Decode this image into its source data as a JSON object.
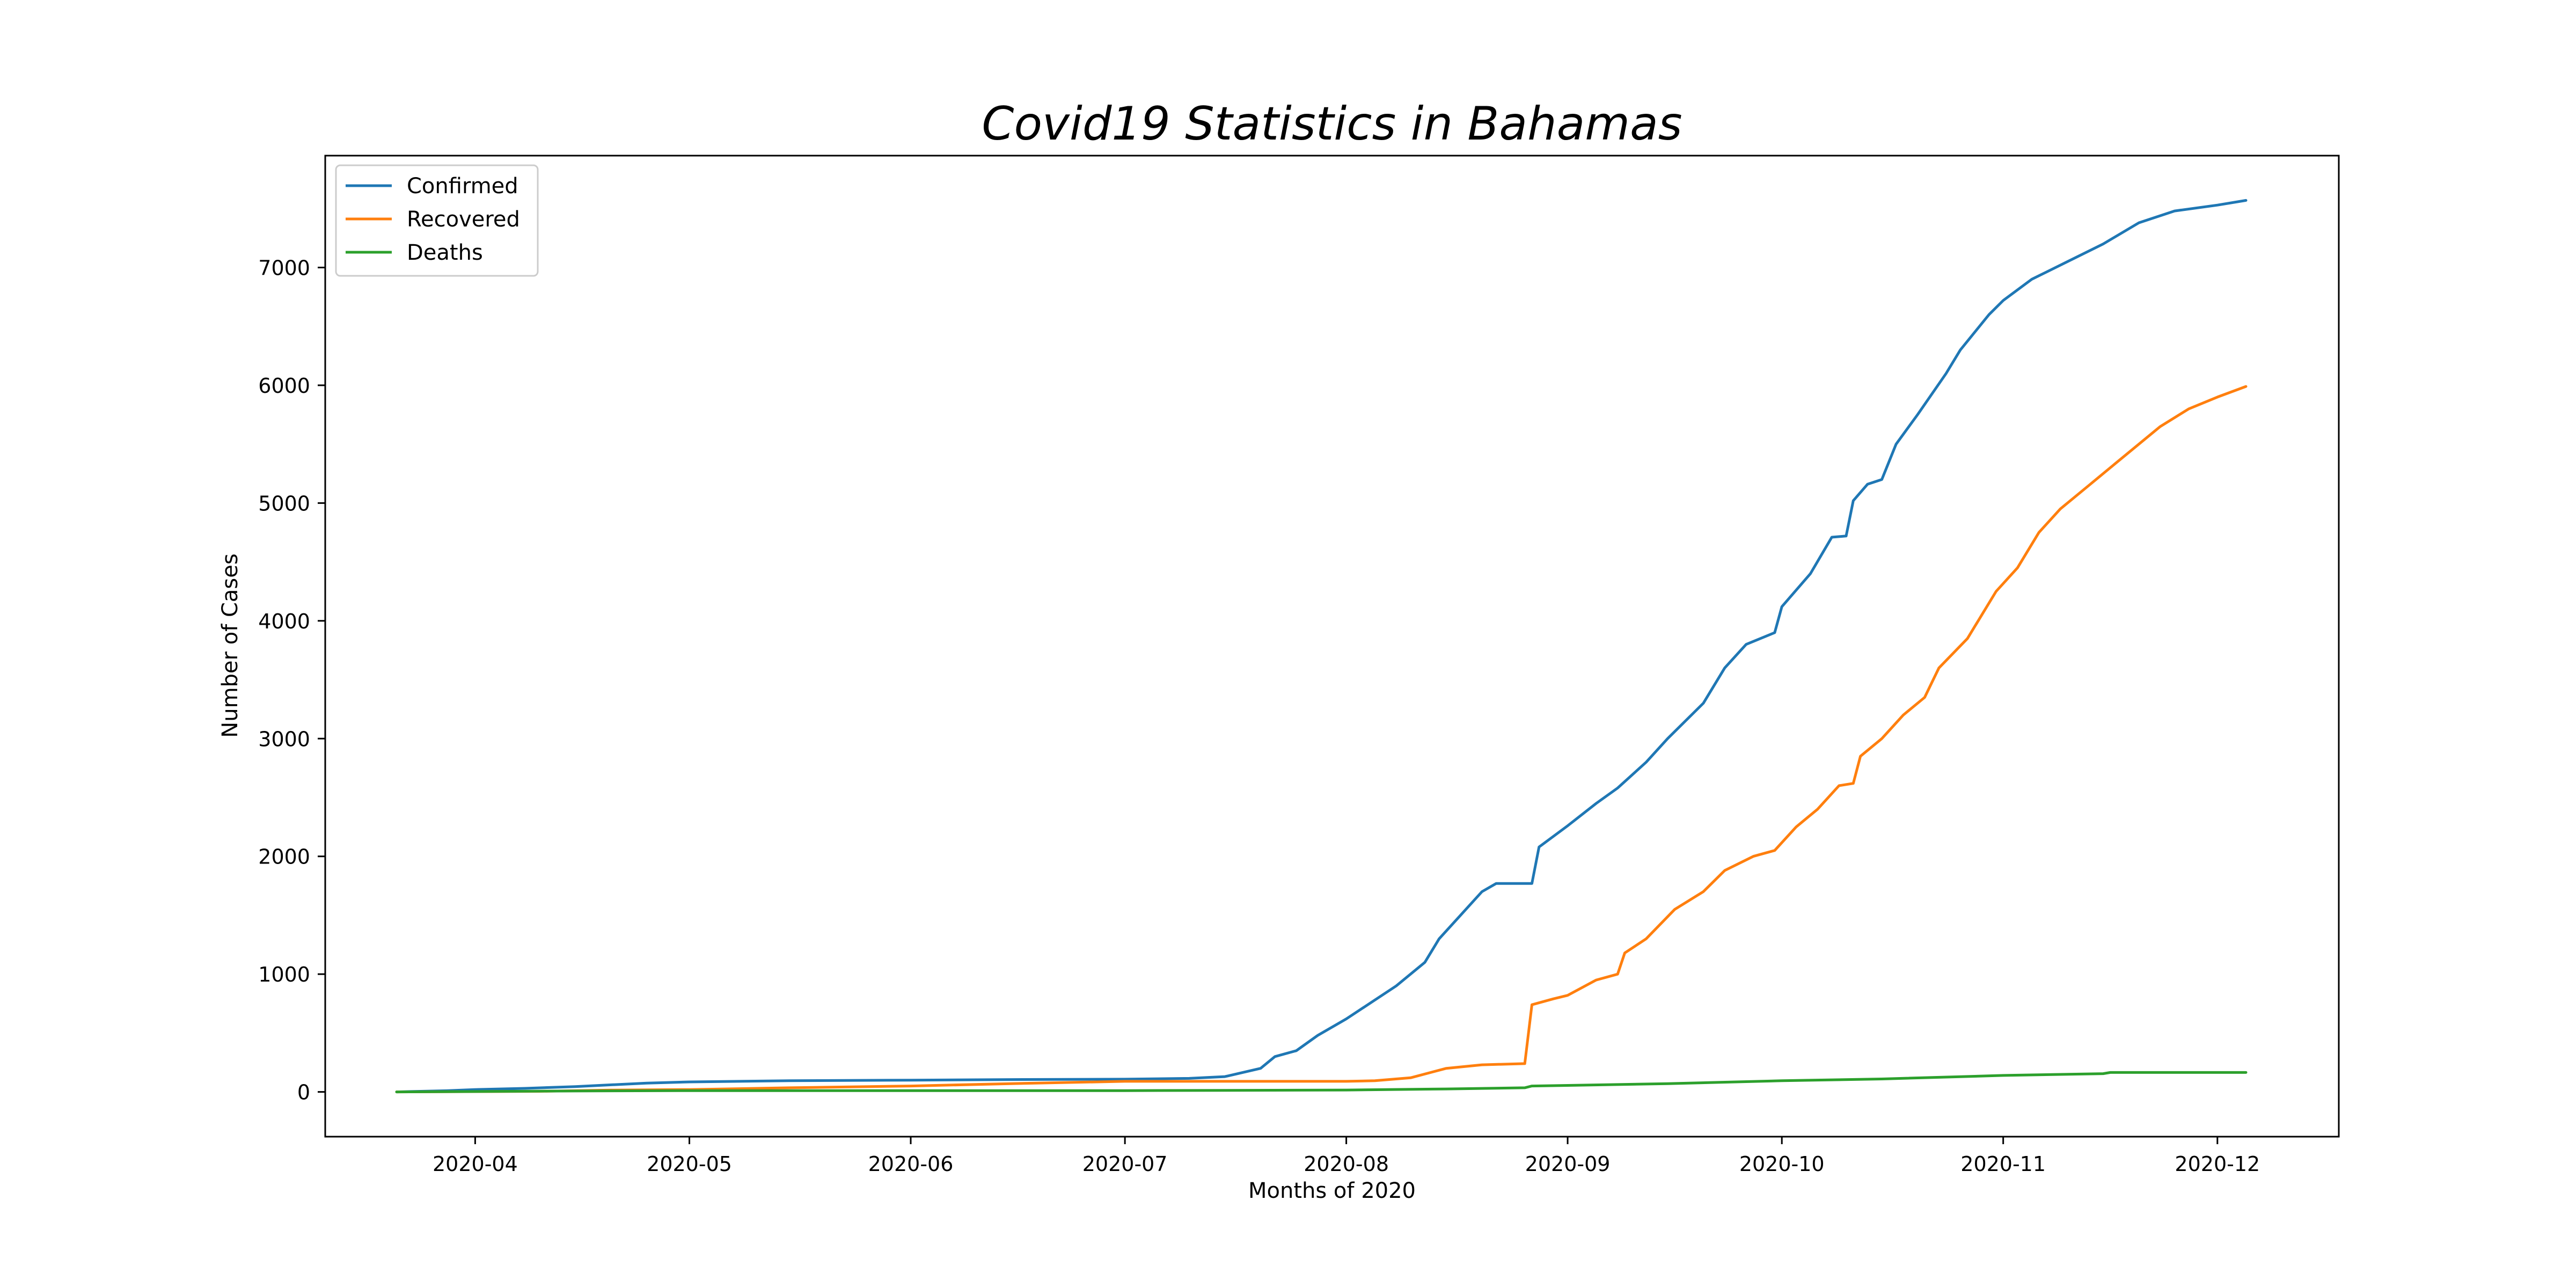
{
  "chart_data": {
    "type": "line",
    "title": "Covid19 Statistics in Bahamas",
    "xlabel": "Months of 2020",
    "ylabel": "Number of Cases",
    "x_range": [
      "2020-03-11",
      "2020-12-18"
    ],
    "ylim": [
      -380,
      7950
    ],
    "x_ticks": [
      "2020-04-01",
      "2020-05-01",
      "2020-06-01",
      "2020-07-01",
      "2020-08-01",
      "2020-09-01",
      "2020-10-01",
      "2020-11-01",
      "2020-12-01"
    ],
    "x_tick_labels": [
      "2020-04",
      "2020-05",
      "2020-06",
      "2020-07",
      "2020-08",
      "2020-09",
      "2020-10",
      "2020-11",
      "2020-12"
    ],
    "y_ticks": [
      0,
      1000,
      2000,
      3000,
      4000,
      5000,
      6000,
      7000
    ],
    "y_tick_labels": [
      "0",
      "1000",
      "2000",
      "3000",
      "4000",
      "5000",
      "6000",
      "7000"
    ],
    "grid": false,
    "legend_position": "top-left",
    "series": [
      {
        "name": "Confirmed",
        "color": "#1f77b4",
        "points": [
          [
            "2020-03-21",
            0
          ],
          [
            "2020-03-28",
            10
          ],
          [
            "2020-04-01",
            20
          ],
          [
            "2020-04-08",
            30
          ],
          [
            "2020-04-15",
            45
          ],
          [
            "2020-04-25",
            75
          ],
          [
            "2020-05-01",
            85
          ],
          [
            "2020-05-15",
            95
          ],
          [
            "2020-06-01",
            100
          ],
          [
            "2020-06-15",
            105
          ],
          [
            "2020-07-01",
            108
          ],
          [
            "2020-07-10",
            115
          ],
          [
            "2020-07-15",
            130
          ],
          [
            "2020-07-20",
            200
          ],
          [
            "2020-07-22",
            300
          ],
          [
            "2020-07-25",
            350
          ],
          [
            "2020-07-28",
            480
          ],
          [
            "2020-08-01",
            620
          ],
          [
            "2020-08-05",
            780
          ],
          [
            "2020-08-08",
            900
          ],
          [
            "2020-08-12",
            1100
          ],
          [
            "2020-08-14",
            1300
          ],
          [
            "2020-08-17",
            1500
          ],
          [
            "2020-08-20",
            1700
          ],
          [
            "2020-08-22",
            1770
          ],
          [
            "2020-08-27",
            1770
          ],
          [
            "2020-08-28",
            2080
          ],
          [
            "2020-09-01",
            2260
          ],
          [
            "2020-09-05",
            2450
          ],
          [
            "2020-09-08",
            2580
          ],
          [
            "2020-09-12",
            2800
          ],
          [
            "2020-09-15",
            3000
          ],
          [
            "2020-09-20",
            3300
          ],
          [
            "2020-09-23",
            3600
          ],
          [
            "2020-09-26",
            3800
          ],
          [
            "2020-09-30",
            3900
          ],
          [
            "2020-10-01",
            4120
          ],
          [
            "2020-10-05",
            4400
          ],
          [
            "2020-10-08",
            4710
          ],
          [
            "2020-10-10",
            4720
          ],
          [
            "2020-10-11",
            5020
          ],
          [
            "2020-10-13",
            5160
          ],
          [
            "2020-10-15",
            5200
          ],
          [
            "2020-10-17",
            5500
          ],
          [
            "2020-10-20",
            5750
          ],
          [
            "2020-10-24",
            6100
          ],
          [
            "2020-10-26",
            6300
          ],
          [
            "2020-10-30",
            6600
          ],
          [
            "2020-11-01",
            6720
          ],
          [
            "2020-11-05",
            6900
          ],
          [
            "2020-11-10",
            7050
          ],
          [
            "2020-11-15",
            7200
          ],
          [
            "2020-11-20",
            7380
          ],
          [
            "2020-11-25",
            7480
          ],
          [
            "2020-12-01",
            7530
          ],
          [
            "2020-12-05",
            7570
          ]
        ]
      },
      {
        "name": "Recovered",
        "color": "#ff7f0e",
        "points": [
          [
            "2020-03-21",
            0
          ],
          [
            "2020-04-10",
            5
          ],
          [
            "2020-04-20",
            15
          ],
          [
            "2020-05-01",
            20
          ],
          [
            "2020-05-15",
            35
          ],
          [
            "2020-06-01",
            50
          ],
          [
            "2020-06-15",
            70
          ],
          [
            "2020-07-01",
            90
          ],
          [
            "2020-07-15",
            90
          ],
          [
            "2020-08-01",
            90
          ],
          [
            "2020-08-05",
            95
          ],
          [
            "2020-08-10",
            120
          ],
          [
            "2020-08-15",
            200
          ],
          [
            "2020-08-20",
            230
          ],
          [
            "2020-08-26",
            240
          ],
          [
            "2020-08-27",
            740
          ],
          [
            "2020-08-30",
            790
          ],
          [
            "2020-09-01",
            820
          ],
          [
            "2020-09-05",
            950
          ],
          [
            "2020-09-08",
            1000
          ],
          [
            "2020-09-09",
            1180
          ],
          [
            "2020-09-12",
            1300
          ],
          [
            "2020-09-16",
            1550
          ],
          [
            "2020-09-20",
            1700
          ],
          [
            "2020-09-23",
            1880
          ],
          [
            "2020-09-27",
            2000
          ],
          [
            "2020-09-30",
            2050
          ],
          [
            "2020-10-03",
            2250
          ],
          [
            "2020-10-06",
            2400
          ],
          [
            "2020-10-09",
            2600
          ],
          [
            "2020-10-11",
            2620
          ],
          [
            "2020-10-12",
            2850
          ],
          [
            "2020-10-15",
            3000
          ],
          [
            "2020-10-18",
            3200
          ],
          [
            "2020-10-21",
            3350
          ],
          [
            "2020-10-23",
            3600
          ],
          [
            "2020-10-27",
            3850
          ],
          [
            "2020-10-31",
            4250
          ],
          [
            "2020-11-03",
            4450
          ],
          [
            "2020-11-06",
            4750
          ],
          [
            "2020-11-09",
            4950
          ],
          [
            "2020-11-13",
            5150
          ],
          [
            "2020-11-16",
            5300
          ],
          [
            "2020-11-20",
            5500
          ],
          [
            "2020-11-23",
            5650
          ],
          [
            "2020-11-27",
            5800
          ],
          [
            "2020-12-01",
            5900
          ],
          [
            "2020-12-05",
            5990
          ]
        ]
      },
      {
        "name": "Deaths",
        "color": "#2ca02c",
        "points": [
          [
            "2020-03-21",
            0
          ],
          [
            "2020-04-15",
            8
          ],
          [
            "2020-05-01",
            11
          ],
          [
            "2020-06-01",
            11
          ],
          [
            "2020-07-01",
            11
          ],
          [
            "2020-08-01",
            16
          ],
          [
            "2020-08-15",
            25
          ],
          [
            "2020-08-26",
            35
          ],
          [
            "2020-08-27",
            50
          ],
          [
            "2020-09-01",
            55
          ],
          [
            "2020-09-15",
            70
          ],
          [
            "2020-10-01",
            95
          ],
          [
            "2020-10-15",
            110
          ],
          [
            "2020-11-01",
            140
          ],
          [
            "2020-11-15",
            155
          ],
          [
            "2020-11-16",
            165
          ],
          [
            "2020-12-05",
            165
          ]
        ]
      }
    ]
  }
}
